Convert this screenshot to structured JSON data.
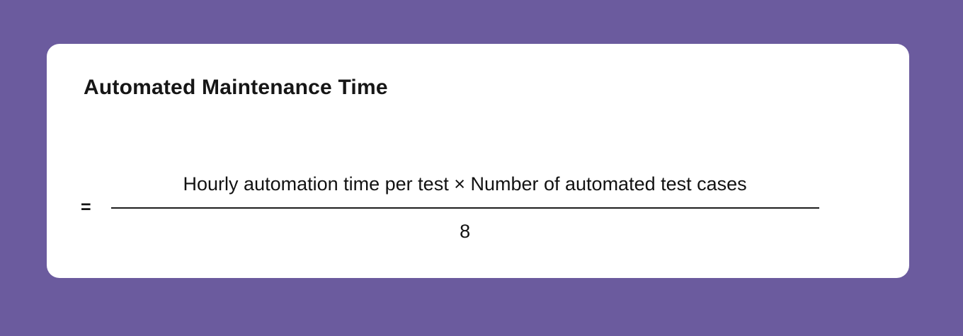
{
  "theme": {
    "background_color": "#6B5B9E",
    "card_background_color": "#FFFFFF",
    "title_color": "#161616",
    "formula_color": "#121212"
  },
  "card": {
    "title": "Automated Maintenance Time",
    "formula": {
      "equals_sign": "=",
      "numerator": "Hourly automation time per test × Number of automated test cases",
      "denominator": "8"
    }
  }
}
